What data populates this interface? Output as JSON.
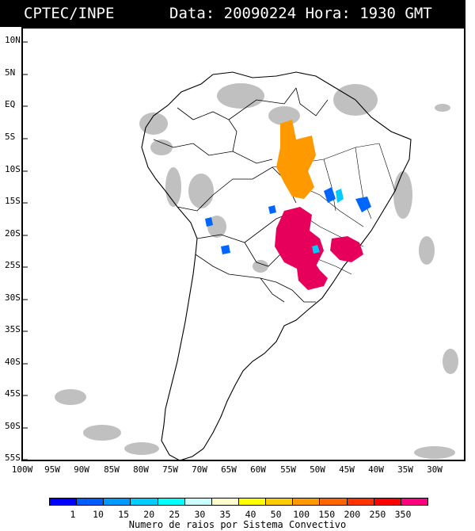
{
  "header": {
    "source": "CPTEC/INPE",
    "info": "Data: 20090224 Hora: 1930 GMT"
  },
  "axes": {
    "lat_labels": [
      "10N",
      "5N",
      "EQ",
      "5S",
      "10S",
      "15S",
      "20S",
      "25S",
      "30S",
      "35S",
      "40S",
      "45S",
      "50S",
      "55S"
    ],
    "lon_labels": [
      "100W",
      "95W",
      "90W",
      "85W",
      "80W",
      "75W",
      "70W",
      "65W",
      "60W",
      "55W",
      "50W",
      "45W",
      "40W",
      "35W",
      "30W"
    ]
  },
  "legend": {
    "ticks": [
      "1",
      "10",
      "15",
      "20",
      "25",
      "30",
      "35",
      "40",
      "50",
      "100",
      "150",
      "200",
      "250",
      "350"
    ],
    "colors": [
      "#0000ff",
      "#005cff",
      "#0099ff",
      "#00ccff",
      "#00ffff",
      "#ccffff",
      "#ffffcc",
      "#ffff00",
      "#ffcc00",
      "#ff9900",
      "#ff6600",
      "#ff3300",
      "#ff0000",
      "#ff0080"
    ],
    "caption": "Numero de raios por Sistema Convectivo"
  },
  "colors": {
    "land_outline": "#000000",
    "clouds": "#c0c0c0",
    "convective_high": "#e6005c",
    "convective_mid": "#ff9900",
    "convective_low": "#0066ff",
    "convective_light": "#00ccff"
  }
}
